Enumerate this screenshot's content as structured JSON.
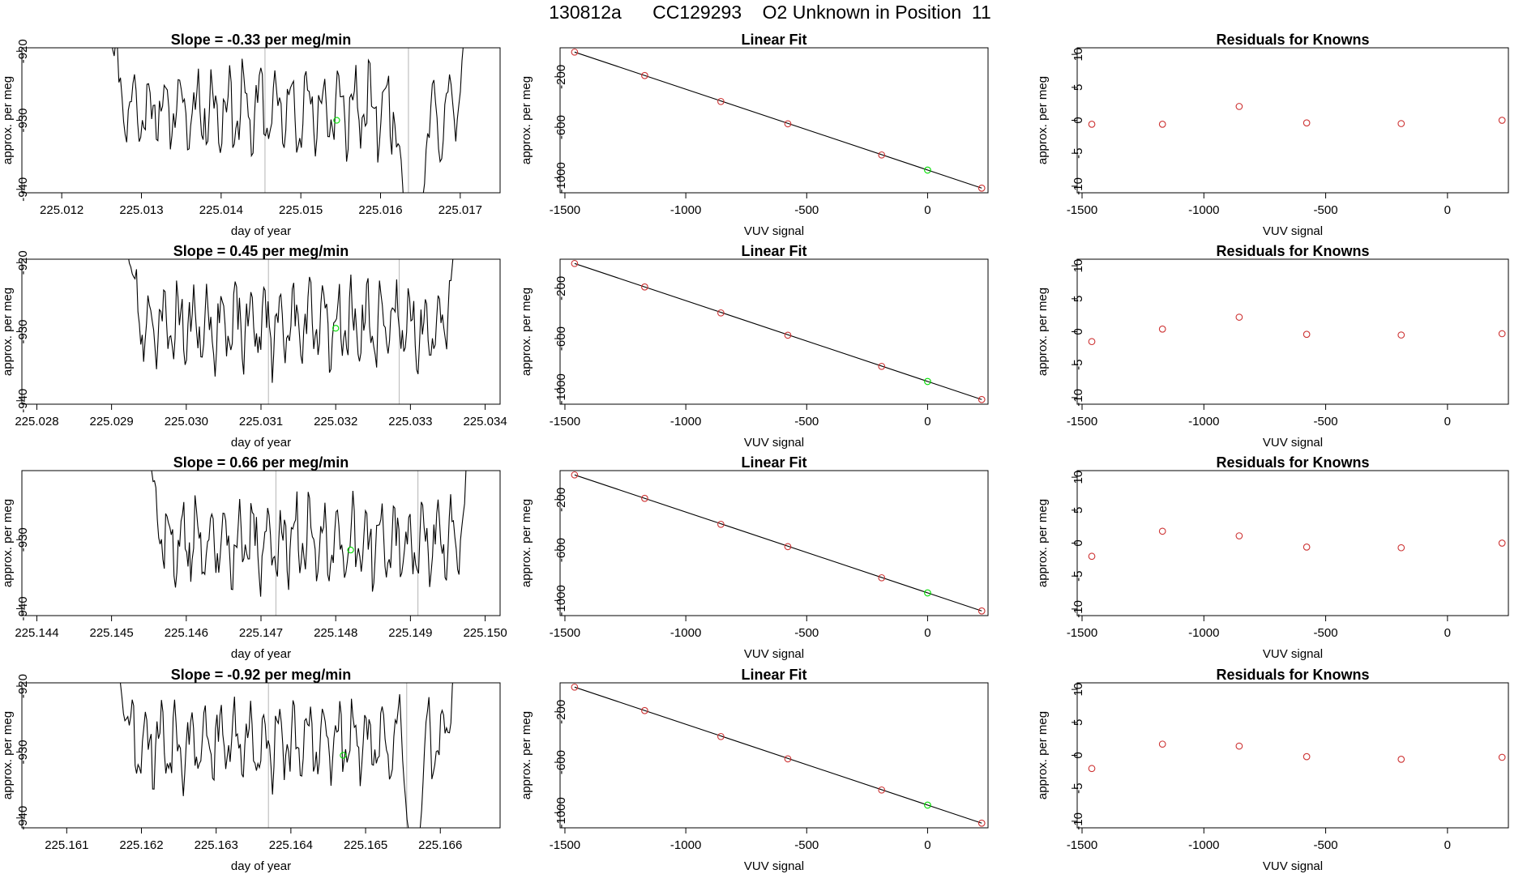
{
  "page_title": "130812a      CC129293    O2 Unknown in Position  11",
  "colors": {
    "line": "#000000",
    "known": "#cd3333",
    "unknown": "#00dd00",
    "vline": "#c0c0c0"
  },
  "chart_data": [
    {
      "type": "line",
      "row": 0,
      "col": 0,
      "title": "Slope =  -0.33  per meg/min",
      "xlabel": "day of year",
      "ylabel": "approx. per meg",
      "xlim": [
        225.0115,
        225.0175
      ],
      "ylim": [
        -940.5,
        -919.5
      ],
      "xticks": [
        225.012,
        225.013,
        225.014,
        225.015,
        225.016,
        225.017
      ],
      "xtick_labels": [
        "225.012",
        "225.013",
        "225.014",
        "225.015",
        "225.016",
        "225.017"
      ],
      "yticks": [
        -920,
        -930,
        -940
      ],
      "ytick_labels": [
        "-920",
        "-930",
        "-940"
      ],
      "x_start": 225.0126,
      "x_end": 225.0171,
      "baseline": -928.5,
      "entry_top": -915,
      "exit_top": -914,
      "dips": [
        [
          225.0162,
          225.0166,
          -950
        ],
        [
          225.0167,
          225.0168,
          -936
        ]
      ],
      "vlines": [
        225.01455,
        225.01635
      ],
      "unknown_point": [
        225.01545,
        -930.0
      ],
      "seed": 11
    },
    {
      "type": "scatter_fit",
      "row": 0,
      "col": 1,
      "title": "Linear Fit",
      "xlabel": "VUV signal",
      "ylabel": "approx. per meg",
      "xlim": [
        -1520,
        250
      ],
      "ylim": [
        -1120,
        30
      ],
      "xticks": [
        -1500,
        -1000,
        -500,
        0
      ],
      "xtick_labels": [
        "-1500",
        "-1000",
        "-500",
        "0"
      ],
      "yticks": [
        -200,
        -600,
        -1000
      ],
      "ytick_labels": [
        "-200",
        "-600",
        "-1000"
      ],
      "known_x": [
        -1460,
        -1170,
        -855,
        -578,
        -190,
        224
      ],
      "known_y": [
        -4,
        -190,
        -396,
        -573,
        -820,
        -1083
      ],
      "fit": [
        -1460,
        -4,
        224,
        -1083
      ],
      "unknown_point": [
        0,
        -940
      ]
    },
    {
      "type": "scatter",
      "row": 0,
      "col": 2,
      "title": "Residuals for Knowns",
      "xlabel": "VUV signal",
      "ylabel": "approx. per meg",
      "xlim": [
        -1520,
        250
      ],
      "ylim": [
        -11,
        11
      ],
      "xticks": [
        -1500,
        -1000,
        -500,
        0
      ],
      "xtick_labels": [
        "-1500",
        "-1000",
        "-500",
        "0"
      ],
      "yticks": [
        10,
        5,
        0,
        -5,
        -10
      ],
      "ytick_labels": [
        "10",
        "5",
        "0",
        "-5",
        "-10"
      ],
      "x": [
        -1460,
        -1170,
        -855,
        -578,
        -190,
        224
      ],
      "y": [
        -0.6,
        -0.6,
        2.1,
        -0.4,
        -0.5,
        0.0
      ]
    },
    {
      "type": "line",
      "row": 1,
      "col": 0,
      "title": "Slope =  0.45  per meg/min",
      "xlabel": "day of year",
      "ylabel": "approx. per meg",
      "xlim": [
        225.0278,
        225.0342
      ],
      "ylim": [
        -940.5,
        -919.5
      ],
      "xticks": [
        225.028,
        225.029,
        225.03,
        225.031,
        225.032,
        225.033,
        225.034
      ],
      "xtick_labels": [
        "225.028",
        "225.029",
        "225.030",
        "225.031",
        "225.032",
        "225.033",
        "225.034"
      ],
      "yticks": [
        -920,
        -930,
        -940
      ],
      "ytick_labels": [
        "-920",
        "-930",
        "-940"
      ],
      "x_start": 225.0292,
      "x_end": 225.0336,
      "baseline": -929.0,
      "entry_top": -916,
      "exit_top": -916,
      "dips": [],
      "vlines": [
        225.0311,
        225.03285
      ],
      "unknown_point": [
        225.032,
        -929.5
      ],
      "seed": 23
    },
    {
      "type": "scatter_fit",
      "row": 1,
      "col": 1,
      "title": "Linear Fit",
      "xlabel": "VUV signal",
      "ylabel": "approx. per meg",
      "xlim": [
        -1520,
        250
      ],
      "ylim": [
        -1120,
        30
      ],
      "xticks": [
        -1500,
        -1000,
        -500,
        0
      ],
      "xtick_labels": [
        "-1500",
        "-1000",
        "-500",
        "0"
      ],
      "yticks": [
        -200,
        -600,
        -1000
      ],
      "ytick_labels": [
        "-200",
        "-600",
        "-1000"
      ],
      "known_x": [
        -1460,
        -1170,
        -855,
        -578,
        -190,
        224
      ],
      "known_y": [
        -4,
        -190,
        -396,
        -573,
        -820,
        -1083
      ],
      "fit": [
        -1460,
        -4,
        224,
        -1083
      ],
      "unknown_point": [
        0,
        -940
      ]
    },
    {
      "type": "scatter",
      "row": 1,
      "col": 2,
      "title": "Residuals for Knowns",
      "xlabel": "VUV signal",
      "ylabel": "approx. per meg",
      "xlim": [
        -1520,
        250
      ],
      "ylim": [
        -11,
        11
      ],
      "xticks": [
        -1500,
        -1000,
        -500,
        0
      ],
      "xtick_labels": [
        "-1500",
        "-1000",
        "-500",
        "0"
      ],
      "yticks": [
        10,
        5,
        0,
        -5,
        -10
      ],
      "ytick_labels": [
        "10",
        "5",
        "0",
        "-5",
        "-10"
      ],
      "x": [
        -1460,
        -1170,
        -855,
        -578,
        -190,
        224
      ],
      "y": [
        -1.5,
        0.4,
        2.2,
        -0.4,
        -0.5,
        -0.3
      ]
    },
    {
      "type": "line",
      "row": 2,
      "col": 0,
      "title": "Slope =  0.66  per meg/min",
      "xlabel": "day of year",
      "ylabel": "approx. per meg",
      "xlim": [
        225.1438,
        225.1502
      ],
      "ylim": [
        -941,
        -920
      ],
      "xticks": [
        225.144,
        225.145,
        225.146,
        225.147,
        225.148,
        225.149,
        225.15
      ],
      "xtick_labels": [
        "225.144",
        "225.145",
        "225.146",
        "225.147",
        "225.148",
        "225.149",
        "225.150"
      ],
      "yticks": [
        -930,
        -940
      ],
      "ytick_labels": [
        "-930",
        "-940"
      ],
      "x_start": 225.1455,
      "x_end": 225.1498,
      "baseline": -930.5,
      "entry_top": -916,
      "exit_top": -916,
      "dips": [],
      "vlines": [
        225.1472,
        225.1491
      ],
      "unknown_point": [
        225.1482,
        -931.5
      ],
      "seed": 37
    },
    {
      "type": "scatter_fit",
      "row": 2,
      "col": 1,
      "title": "Linear Fit",
      "xlabel": "VUV signal",
      "ylabel": "approx. per meg",
      "xlim": [
        -1520,
        250
      ],
      "ylim": [
        -1120,
        30
      ],
      "xticks": [
        -1500,
        -1000,
        -500,
        0
      ],
      "xtick_labels": [
        "-1500",
        "-1000",
        "-500",
        "0"
      ],
      "yticks": [
        -200,
        -600,
        -1000
      ],
      "ytick_labels": [
        "-200",
        "-600",
        "-1000"
      ],
      "known_x": [
        -1460,
        -1170,
        -855,
        -578,
        -190,
        224
      ],
      "known_y": [
        -4,
        -190,
        -396,
        -573,
        -820,
        -1083
      ],
      "fit": [
        -1460,
        -4,
        224,
        -1083
      ],
      "unknown_point": [
        0,
        -940
      ]
    },
    {
      "type": "scatter",
      "row": 2,
      "col": 2,
      "title": "Residuals for Knowns",
      "xlabel": "VUV signal",
      "ylabel": "approx. per meg",
      "xlim": [
        -1520,
        250
      ],
      "ylim": [
        -11,
        11
      ],
      "xticks": [
        -1500,
        -1000,
        -500,
        0
      ],
      "xtick_labels": [
        "-1500",
        "-1000",
        "-500",
        "0"
      ],
      "yticks": [
        10,
        5,
        0,
        -5,
        -10
      ],
      "ytick_labels": [
        "10",
        "5",
        "0",
        "-5",
        "-10"
      ],
      "x": [
        -1460,
        -1170,
        -855,
        -578,
        -190,
        224
      ],
      "y": [
        -2.0,
        1.8,
        1.1,
        -0.6,
        -0.7,
        0.0
      ]
    },
    {
      "type": "line",
      "row": 3,
      "col": 0,
      "title": "Slope =  -0.92  per meg/min",
      "xlabel": "day of year",
      "ylabel": "approx. per meg",
      "xlim": [
        225.1604,
        225.1668
      ],
      "ylim": [
        -941.5,
        -919.5
      ],
      "xticks": [
        225.161,
        225.162,
        225.163,
        225.164,
        225.165,
        225.166
      ],
      "xtick_labels": [
        "225.161",
        "225.162",
        "225.163",
        "225.164",
        "225.165",
        "225.166"
      ],
      "yticks": [
        -920,
        -930,
        -940
      ],
      "ytick_labels": [
        "-920",
        "-930",
        "-940"
      ],
      "x_start": 225.1617,
      "x_end": 225.1662,
      "baseline": -928.5,
      "entry_top": -918,
      "exit_top": -916,
      "dips": [
        [
          225.1655,
          225.1658,
          -946
        ]
      ],
      "vlines": [
        225.1637,
        225.16555
      ],
      "unknown_point": [
        225.1647,
        -930.5
      ],
      "seed": 53
    },
    {
      "type": "scatter_fit",
      "row": 3,
      "col": 1,
      "title": "Linear Fit",
      "xlabel": "VUV signal",
      "ylabel": "approx. per meg",
      "xlim": [
        -1520,
        250
      ],
      "ylim": [
        -1120,
        30
      ],
      "xticks": [
        -1500,
        -1000,
        -500,
        0
      ],
      "xtick_labels": [
        "-1500",
        "-1000",
        "-500",
        "0"
      ],
      "yticks": [
        -200,
        -600,
        -1000
      ],
      "ytick_labels": [
        "-200",
        "-600",
        "-1000"
      ],
      "known_x": [
        -1460,
        -1170,
        -855,
        -578,
        -190,
        224
      ],
      "known_y": [
        -4,
        -190,
        -396,
        -573,
        -820,
        -1083
      ],
      "fit": [
        -1460,
        -4,
        224,
        -1083
      ],
      "unknown_point": [
        0,
        -940
      ]
    },
    {
      "type": "scatter",
      "row": 3,
      "col": 2,
      "title": "Residuals for Knowns",
      "xlabel": "VUV signal",
      "ylabel": "approx. per meg",
      "xlim": [
        -1520,
        250
      ],
      "ylim": [
        -11,
        11
      ],
      "xticks": [
        -1500,
        -1000,
        -500,
        0
      ],
      "xtick_labels": [
        "-1500",
        "-1000",
        "-500",
        "0"
      ],
      "yticks": [
        10,
        5,
        0,
        -5,
        -10
      ],
      "ytick_labels": [
        "10",
        "5",
        "0",
        "-5",
        "-10"
      ],
      "x": [
        -1460,
        -1170,
        -855,
        -578,
        -190,
        224
      ],
      "y": [
        -2.0,
        1.7,
        1.4,
        -0.2,
        -0.6,
        -0.3
      ]
    }
  ]
}
